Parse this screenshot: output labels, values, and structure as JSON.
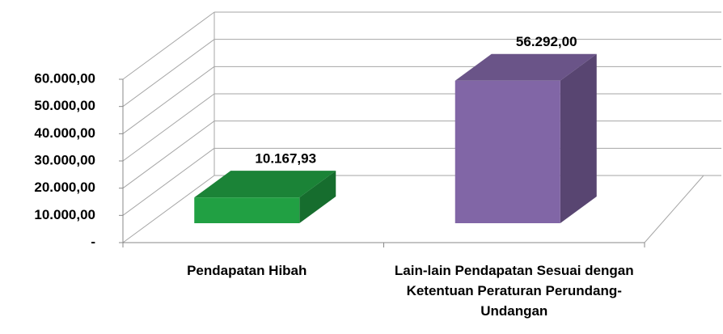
{
  "chart_data": {
    "type": "bar3d",
    "categories": [
      "Pendapatan Hibah",
      "Lain-lain Pendapatan Sesuai dengan Ketentuan Peraturan Perundang-Undangan"
    ],
    "values": [
      10167.93,
      56292
    ],
    "value_labels": [
      "10.167,93",
      "56.292,00"
    ],
    "colors": [
      "#21a043",
      "#8166a6"
    ],
    "ylim": [
      0,
      60000
    ],
    "yticks": [
      {
        "value": 0,
        "label": "-"
      },
      {
        "value": 10000,
        "label": "10.000,00"
      },
      {
        "value": 20000,
        "label": "20.000,00"
      },
      {
        "value": 30000,
        "label": "30.000,00"
      },
      {
        "value": 40000,
        "label": "40.000,00"
      },
      {
        "value": 50000,
        "label": "50.000,00"
      },
      {
        "value": 60000,
        "label": "60.000,00"
      }
    ],
    "grid": true
  }
}
